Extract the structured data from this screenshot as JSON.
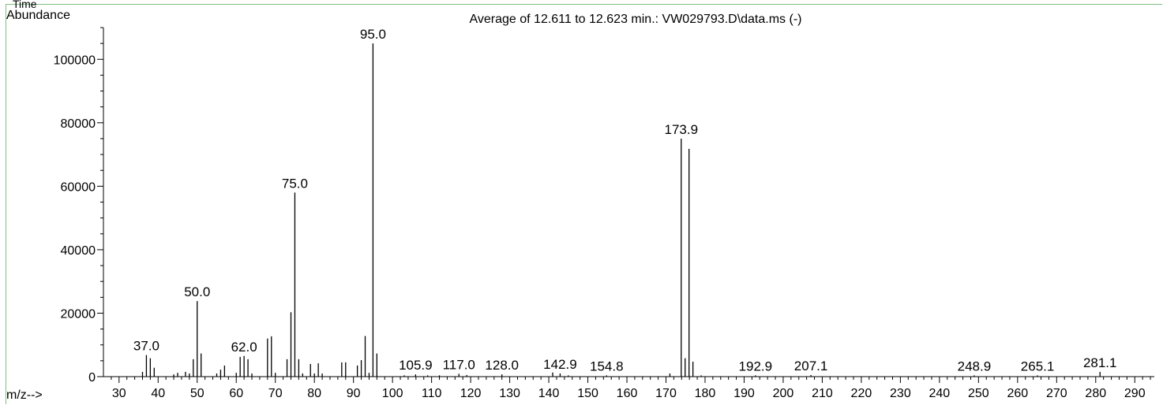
{
  "header": {
    "time_label": "Time"
  },
  "chart_data": {
    "type": "bar",
    "title": "Average of 12.611 to 12.623 min.: VW029793.D\\data.ms (-)",
    "ylabel": "Abundance",
    "xlabel": "m/z-->",
    "xlim": [
      26,
      295
    ],
    "ylim": [
      0,
      110000
    ],
    "x_ticks": [
      30,
      40,
      50,
      60,
      70,
      80,
      90,
      100,
      110,
      120,
      130,
      140,
      150,
      160,
      170,
      180,
      190,
      200,
      210,
      220,
      230,
      240,
      250,
      260,
      270,
      280,
      290
    ],
    "y_ticks": [
      0,
      20000,
      40000,
      60000,
      80000,
      100000
    ],
    "peaks": [
      [
        36,
        1500
      ],
      [
        37,
        6800
      ],
      [
        38,
        5800
      ],
      [
        39,
        2800
      ],
      [
        44,
        700
      ],
      [
        45,
        1200
      ],
      [
        47,
        1500
      ],
      [
        48,
        1000
      ],
      [
        49,
        5500
      ],
      [
        50,
        23800
      ],
      [
        51,
        7300
      ],
      [
        55,
        1000
      ],
      [
        56,
        2200
      ],
      [
        57,
        3500
      ],
      [
        60,
        1200
      ],
      [
        61,
        6200
      ],
      [
        62,
        6500
      ],
      [
        63,
        5500
      ],
      [
        64,
        1000
      ],
      [
        68,
        12000
      ],
      [
        69,
        12700
      ],
      [
        70,
        1200
      ],
      [
        73,
        5500
      ],
      [
        74,
        20300
      ],
      [
        75,
        58000
      ],
      [
        76,
        5500
      ],
      [
        77,
        1000
      ],
      [
        79,
        4000
      ],
      [
        80,
        1000
      ],
      [
        81,
        4200
      ],
      [
        82,
        1000
      ],
      [
        87,
        4500
      ],
      [
        88,
        4500
      ],
      [
        91,
        3500
      ],
      [
        92,
        5200
      ],
      [
        93,
        12800
      ],
      [
        94,
        1200
      ],
      [
        95,
        105000
      ],
      [
        96,
        7300
      ],
      [
        103,
        400
      ],
      [
        105.9,
        700
      ],
      [
        109,
        400
      ],
      [
        112,
        400
      ],
      [
        117,
        900
      ],
      [
        119,
        500
      ],
      [
        128,
        700
      ],
      [
        141,
        1300
      ],
      [
        142.9,
        1000
      ],
      [
        145,
        400
      ],
      [
        154.8,
        400
      ],
      [
        171,
        1000
      ],
      [
        173.9,
        75000
      ],
      [
        174.9,
        5800
      ],
      [
        175.9,
        71800
      ],
      [
        176.9,
        4700
      ],
      [
        179,
        400
      ],
      [
        192.9,
        400
      ],
      [
        207.1,
        500
      ],
      [
        248.9,
        400
      ],
      [
        265.1,
        400
      ],
      [
        281.1,
        1500
      ]
    ],
    "peak_labels": [
      {
        "x": 37.0,
        "y": 6800,
        "text": "37.0"
      },
      {
        "x": 50.0,
        "y": 23800,
        "text": "50.0"
      },
      {
        "x": 62.0,
        "y": 6500,
        "text": "62.0"
      },
      {
        "x": 75.0,
        "y": 58000,
        "text": "75.0"
      },
      {
        "x": 95.0,
        "y": 105000,
        "text": "95.0"
      },
      {
        "x": 105.9,
        "y": 700,
        "text": "105.9"
      },
      {
        "x": 117.0,
        "y": 900,
        "text": "117.0"
      },
      {
        "x": 128.0,
        "y": 700,
        "text": "128.0"
      },
      {
        "x": 142.9,
        "y": 1000,
        "text": "142.9"
      },
      {
        "x": 154.8,
        "y": 400,
        "text": "154.8"
      },
      {
        "x": 173.9,
        "y": 75000,
        "text": "173.9"
      },
      {
        "x": 192.9,
        "y": 400,
        "text": "192.9"
      },
      {
        "x": 207.1,
        "y": 500,
        "text": "207.1"
      },
      {
        "x": 248.9,
        "y": 400,
        "text": "248.9"
      },
      {
        "x": 265.1,
        "y": 400,
        "text": "265.1"
      },
      {
        "x": 281.1,
        "y": 1500,
        "text": "281.1"
      }
    ],
    "grid": false,
    "colors": {
      "bar": "#000000",
      "frame": "#7fbf7f"
    }
  }
}
